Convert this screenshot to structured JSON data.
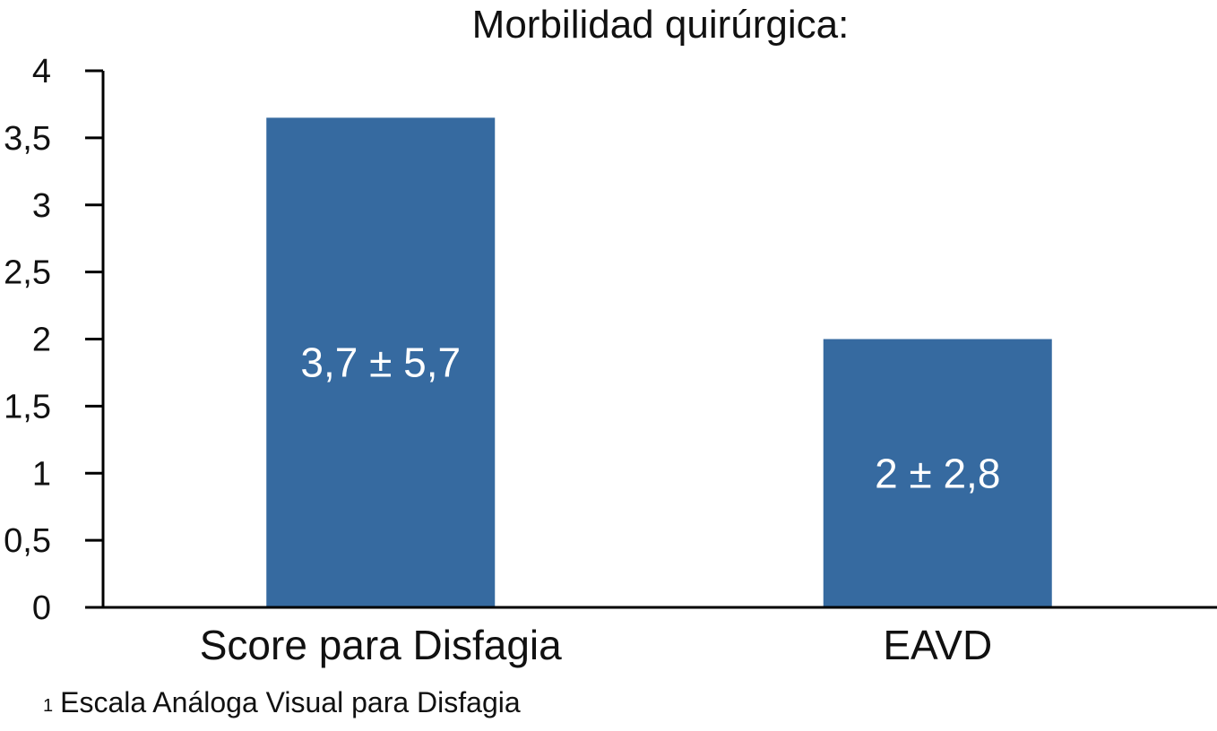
{
  "chart_data": {
    "type": "bar",
    "title": "Morbilidad quirúrgica:",
    "categories": [
      "Score para Disfagia",
      "EAVD"
    ],
    "values": [
      3.65,
      2.0
    ],
    "data_labels": [
      "3,7 ± 5,7",
      "2 ± 2,8"
    ],
    "ylim": [
      0,
      4
    ],
    "yticks": [
      0,
      0.5,
      1,
      1.5,
      2,
      2.5,
      3,
      3.5,
      4
    ],
    "ytick_labels": [
      "0",
      "0,5",
      "1",
      "1,5",
      "2",
      "2,5",
      "3",
      "3,5",
      "4"
    ],
    "xlabel": "",
    "ylabel": "",
    "grid": false,
    "bar_color": "#366aa0"
  },
  "footnote": {
    "marker": "1",
    "text": "Escala Análoga Visual para Disfagia"
  }
}
